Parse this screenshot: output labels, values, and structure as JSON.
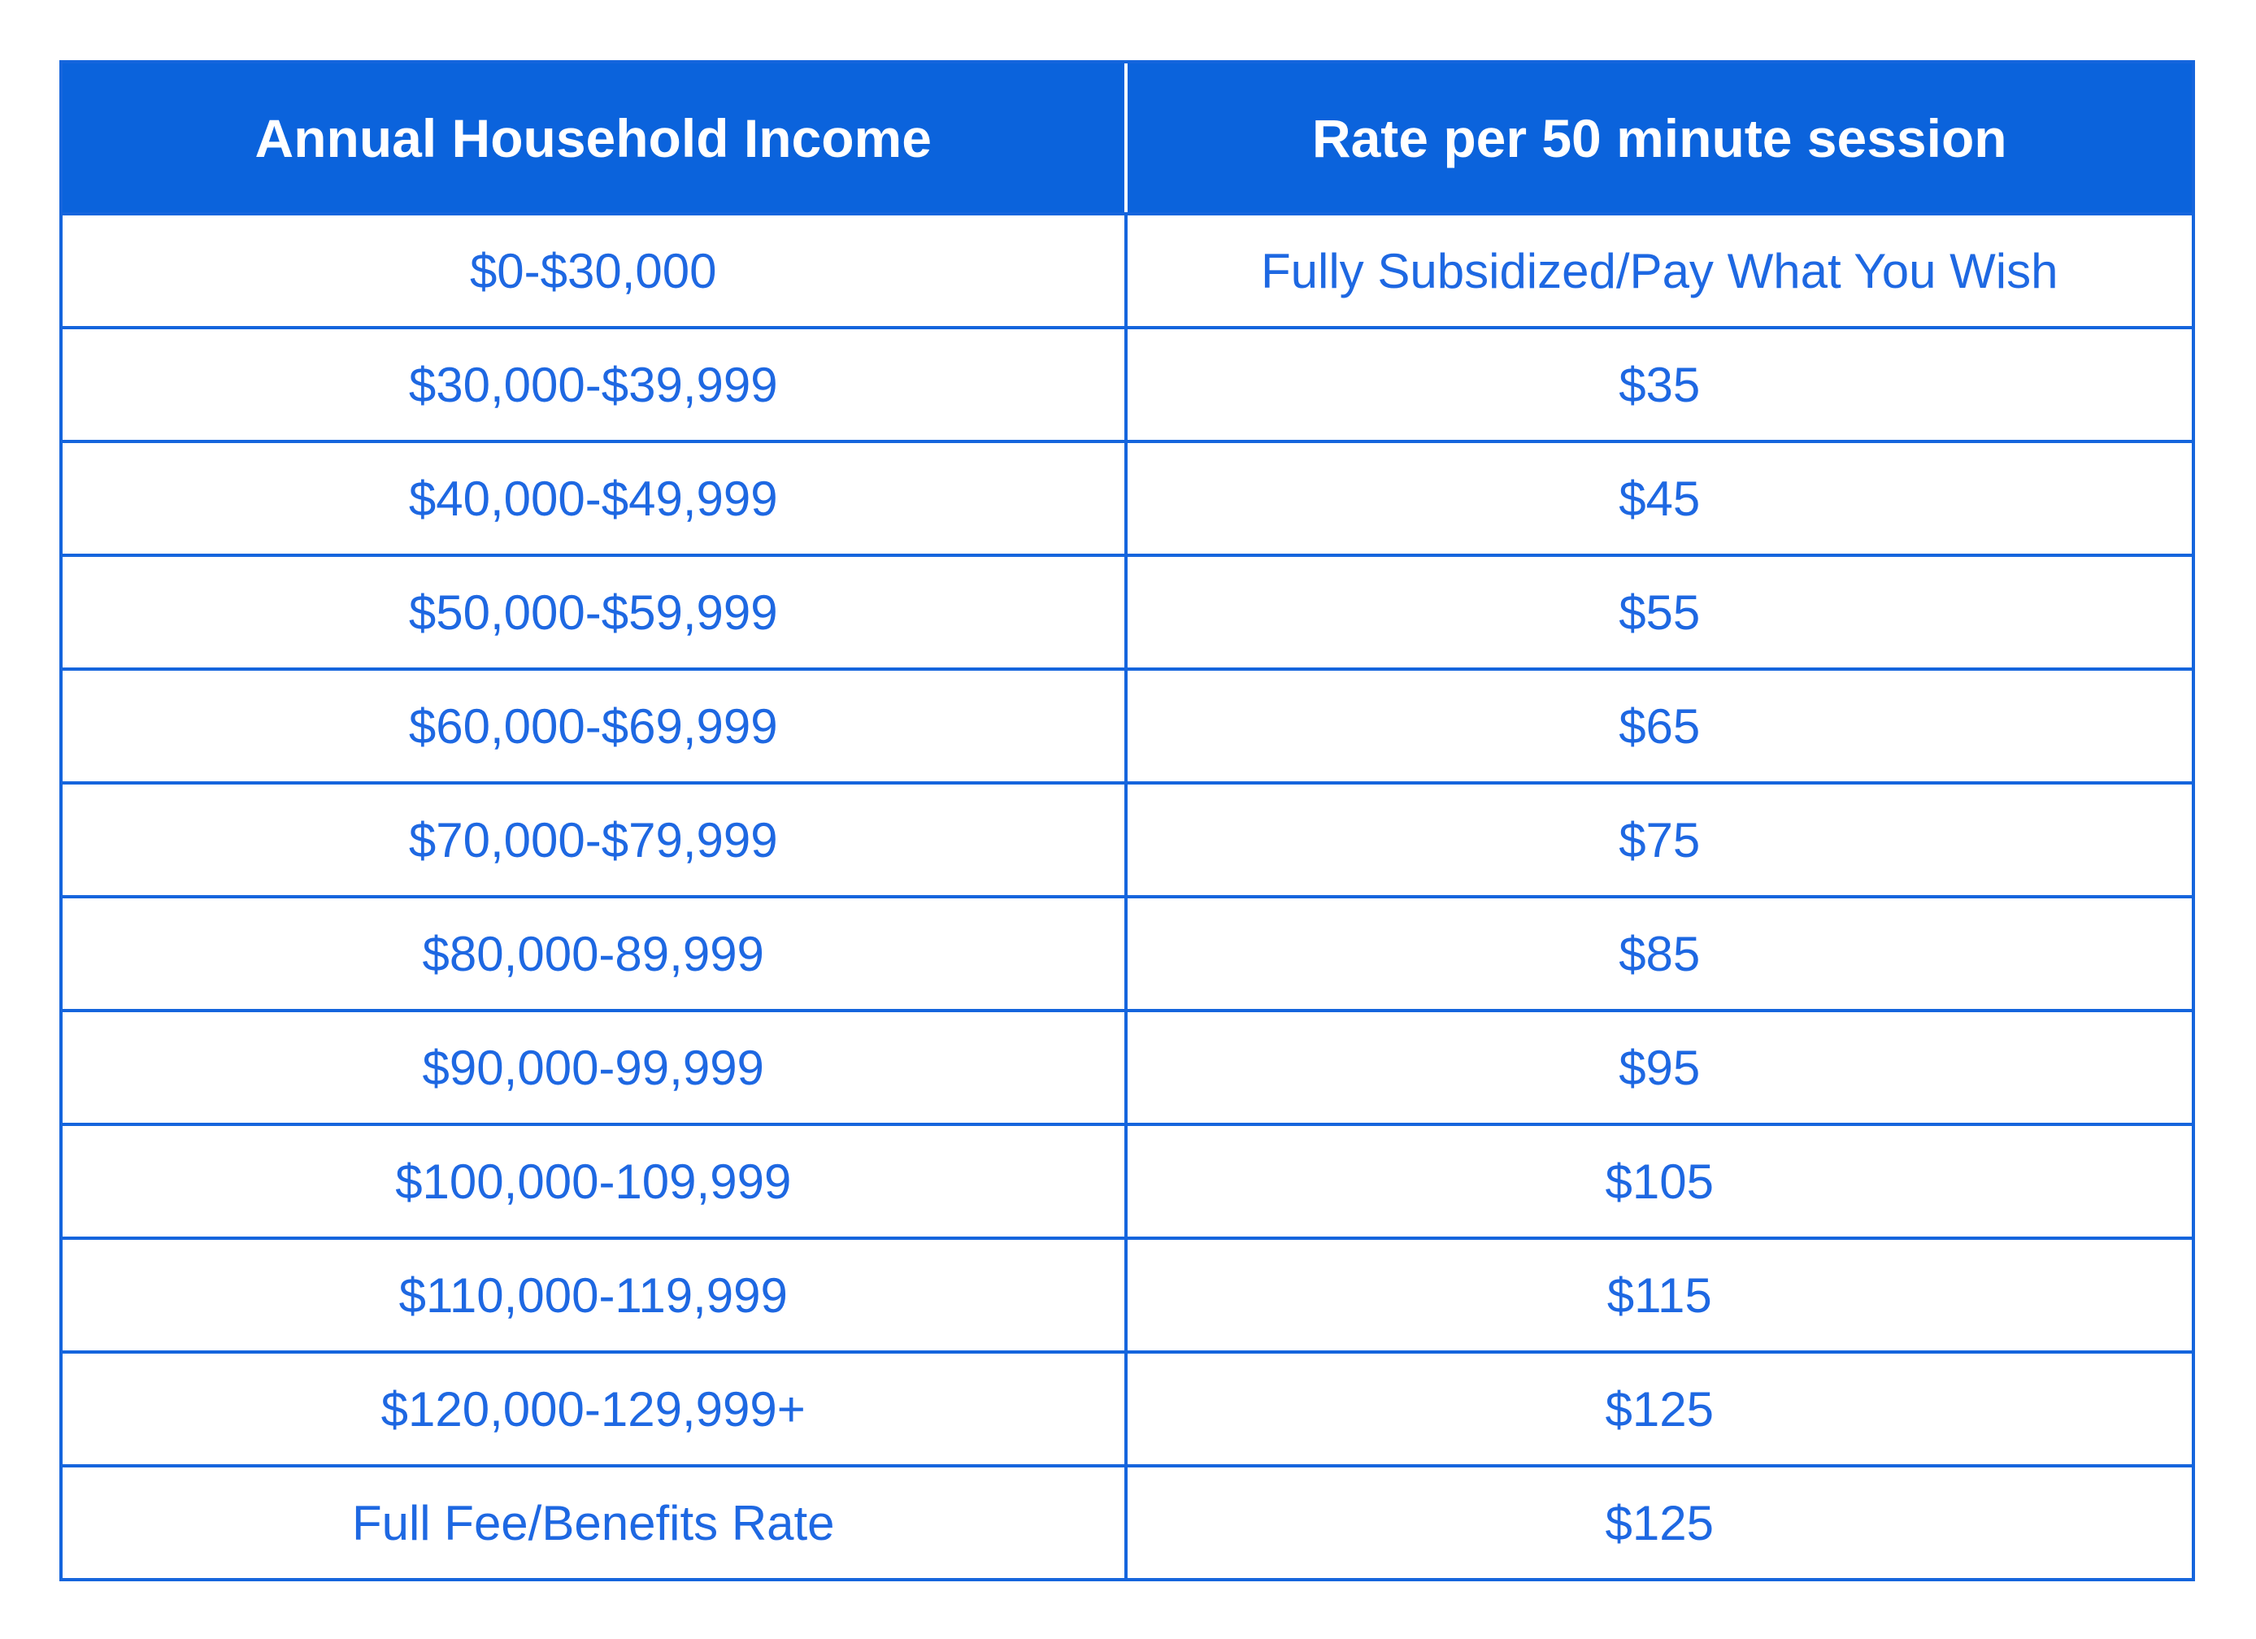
{
  "colors": {
    "header_bg": "#0b63dc",
    "header_text": "#ffffff",
    "body_text": "#1e68e2",
    "border": "#1565dd",
    "page_background": "#ffffff"
  },
  "table": {
    "headers": [
      "Annual Household Income",
      "Rate per 50 minute session"
    ],
    "rows": [
      {
        "income": "$0-$30,000",
        "rate": "Fully Subsidized/Pay What You Wish"
      },
      {
        "income": "$30,000-$39,999",
        "rate": "$35"
      },
      {
        "income": "$40,000-$49,999",
        "rate": "$45"
      },
      {
        "income": "$50,000-$59,999",
        "rate": "$55"
      },
      {
        "income": "$60,000-$69,999",
        "rate": "$65"
      },
      {
        "income": "$70,000-$79,999",
        "rate": "$75"
      },
      {
        "income": "$80,000-89,999",
        "rate": "$85"
      },
      {
        "income": "$90,000-99,999",
        "rate": "$95"
      },
      {
        "income": "$100,000-109,999",
        "rate": "$105"
      },
      {
        "income": "$110,000-119,999",
        "rate": "$115"
      },
      {
        "income": "$120,000-129,999+",
        "rate": "$125"
      },
      {
        "income": "Full Fee/Benefits Rate",
        "rate": "$125"
      }
    ]
  },
  "chart_data": {
    "type": "table",
    "title": "",
    "columns": [
      "Annual Household Income",
      "Rate per 50 minute session"
    ],
    "rows": [
      [
        "$0-$30,000",
        "Fully Subsidized/Pay What You Wish"
      ],
      [
        "$30,000-$39,999",
        "$35"
      ],
      [
        "$40,000-$49,999",
        "$45"
      ],
      [
        "$50,000-$59,999",
        "$55"
      ],
      [
        "$60,000-$69,999",
        "$65"
      ],
      [
        "$70,000-$79,999",
        "$75"
      ],
      [
        "$80,000-89,999",
        "$85"
      ],
      [
        "$90,000-99,999",
        "$95"
      ],
      [
        "$100,000-109,999",
        "$105"
      ],
      [
        "$110,000-119,999",
        "$115"
      ],
      [
        "$120,000-129,999+",
        "$125"
      ],
      [
        "Full Fee/Benefits Rate",
        "$125"
      ]
    ],
    "layout_hints": {
      "header_background": "#0b63dc",
      "header_text_color": "#ffffff",
      "body_text_color": "#1e68e2",
      "grid": "on",
      "columns_equal_width": true
    }
  }
}
